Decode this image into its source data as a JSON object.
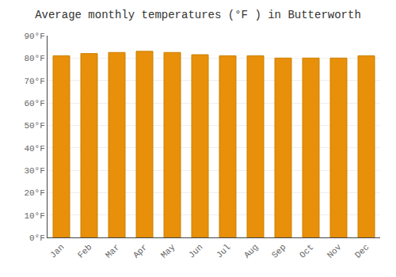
{
  "chart_data": {
    "type": "bar",
    "title": "Average monthly temperatures (°F ) in Butterworth",
    "categories": [
      "Jan",
      "Feb",
      "Mar",
      "Apr",
      "May",
      "Jun",
      "Jul",
      "Aug",
      "Sep",
      "Oct",
      "Nov",
      "Dec"
    ],
    "values": [
      81,
      82,
      82.5,
      83,
      82.5,
      81.5,
      81,
      81,
      80,
      80,
      80,
      81
    ],
    "color": "#E8900A",
    "ylim": [
      0,
      90
    ],
    "yticks": [
      {
        "value": 0,
        "label": "0°F"
      },
      {
        "value": 10,
        "label": "10°F"
      },
      {
        "value": 20,
        "label": "20°F"
      },
      {
        "value": 30,
        "label": "30°F"
      },
      {
        "value": 40,
        "label": "40°F"
      },
      {
        "value": 50,
        "label": "50°F"
      },
      {
        "value": 60,
        "label": "60°F"
      },
      {
        "value": 70,
        "label": "70°F"
      },
      {
        "value": 80,
        "label": "80°F"
      },
      {
        "value": 90,
        "label": "90°F"
      }
    ],
    "grid": true
  }
}
